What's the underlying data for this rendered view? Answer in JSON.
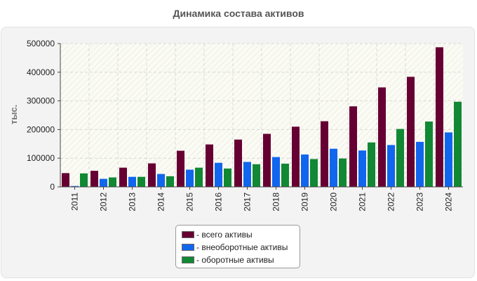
{
  "header": {
    "title": "Динамика состава активов"
  },
  "colors": {
    "vsego": "#660033",
    "vneob": "#1166ee",
    "obor": "#118833"
  },
  "chart_data": {
    "type": "bar",
    "title": "Динамика состава активов",
    "xlabel": "",
    "ylabel": "тыс.",
    "ylim": [
      0,
      500000
    ],
    "yticks": [
      "0",
      "100000",
      "200000",
      "300000",
      "400000",
      "500000"
    ],
    "grid": true,
    "legend_position": "bottom",
    "categories": [
      "2011",
      "2012",
      "2013",
      "2014",
      "2015",
      "2016",
      "2017",
      "2018",
      "2019",
      "2020",
      "2021",
      "2022",
      "2023",
      "2024"
    ],
    "series": [
      {
        "name": "- всего активы",
        "color": "#660033",
        "values": [
          48000,
          56000,
          67000,
          82000,
          126000,
          148000,
          165000,
          185000,
          210000,
          229000,
          281000,
          347000,
          384000,
          487000
        ]
      },
      {
        "name": "- внеоборотные активы",
        "color": "#1166ee",
        "values": [
          3000,
          28000,
          35000,
          45000,
          60000,
          84000,
          87000,
          104000,
          113000,
          133000,
          127000,
          146000,
          157000,
          190000
        ]
      },
      {
        "name": "- оборотные активы",
        "color": "#118833",
        "values": [
          47000,
          33000,
          35000,
          37000,
          67000,
          64000,
          79000,
          81000,
          97000,
          99000,
          155000,
          202000,
          228000,
          297000
        ]
      }
    ]
  }
}
